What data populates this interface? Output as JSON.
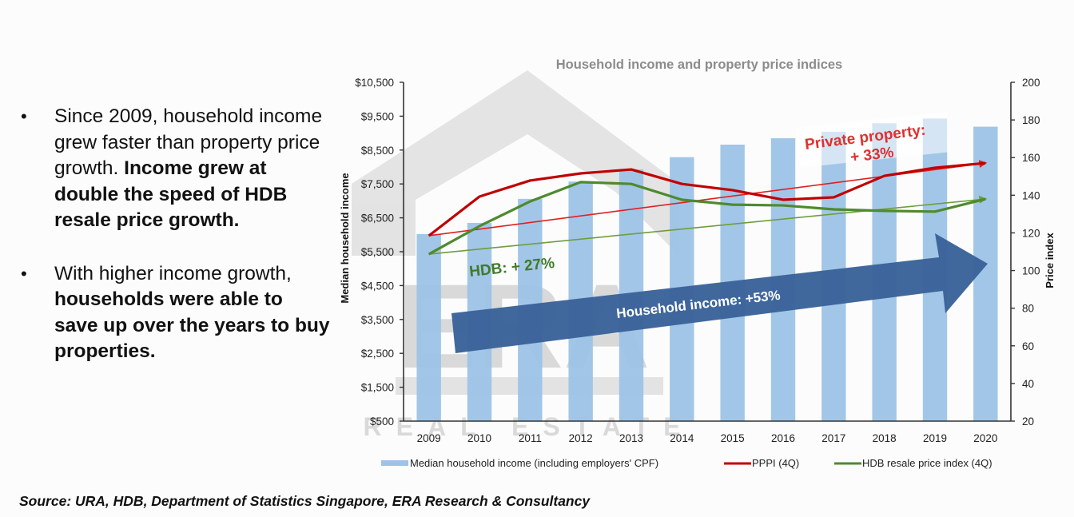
{
  "bullets": [
    {
      "segments": [
        {
          "text": "Since 2009, household income grew faster than property price growth. ",
          "bold": false
        },
        {
          "text": "Income grew at double the speed of HDB resale price growth.",
          "bold": true
        }
      ]
    },
    {
      "segments": [
        {
          "text": "With higher income growth, ",
          "bold": false
        },
        {
          "text": "households were able to save up over the years to buy properties.",
          "bold": true
        }
      ]
    }
  ],
  "bullet_glyph": "•",
  "source": "Source: URA, HDB, Department of Statistics Singapore, ERA Research & Consultancy",
  "watermark": {
    "logo": "ERA",
    "tagline": "REAL ESTATE"
  },
  "colors": {
    "bars": "#9dc3e6",
    "ppi": "#c00000",
    "hdb": "#4e8a2e",
    "income_arrow": "#3b6399",
    "title": "#8c8c8c"
  },
  "chart_data": {
    "type": "bar+line",
    "title": "Household income and property price indices",
    "categories": [
      "2009",
      "2010",
      "2011",
      "2012",
      "2013",
      "2014",
      "2015",
      "2016",
      "2017",
      "2018",
      "2019",
      "2020"
    ],
    "ylabel_left": "Median household income",
    "ylabel_right": "Price index",
    "ylim_left": [
      500,
      10500
    ],
    "ylim_right": [
      20,
      200
    ],
    "yticks_left": [
      "$10,500",
      "$9,500",
      "$8,500",
      "$7,500",
      "$6,500",
      "$5,500",
      "$4,500",
      "$3,500",
      "$2,500",
      "$1,500",
      "$500"
    ],
    "yticks_left_values": [
      10500,
      9500,
      8500,
      7500,
      6500,
      5500,
      4500,
      3500,
      2500,
      1500,
      500
    ],
    "yticks_right": [
      200,
      180,
      160,
      140,
      120,
      100,
      80,
      60,
      40,
      20
    ],
    "grid": false,
    "legend_position": "bottom",
    "series": [
      {
        "name": "Median household income (including employers' CPF)",
        "type": "bar",
        "axis": "left",
        "values": [
          6020,
          6350,
          7060,
          7570,
          7930,
          8290,
          8660,
          8850,
          9040,
          9290,
          9430,
          9190
        ]
      },
      {
        "name": "PPPI (4Q)",
        "type": "line",
        "axis": "right",
        "values": [
          118.5,
          139.3,
          147.8,
          151.6,
          153.7,
          146.0,
          142.7,
          137.6,
          138.9,
          150.3,
          154.6,
          157.1
        ]
      },
      {
        "name": "HDB resale price index (4Q)",
        "type": "line",
        "axis": "right",
        "values": [
          108.7,
          123.6,
          136.7,
          147.0,
          146.0,
          137.6,
          135.0,
          134.6,
          132.5,
          131.7,
          131.3,
          138.0
        ]
      }
    ],
    "annotations": [
      {
        "text_line1": "Private property:",
        "text_line2": "+ 33%",
        "trend": {
          "series": "PPPI (4Q)",
          "from": 118.5,
          "to": 157.1
        }
      },
      {
        "text": "HDB: + 27%",
        "trend": {
          "series": "HDB resale price index (4Q)",
          "from": 108.7,
          "to": 138.0
        }
      },
      {
        "text": "Household income: +53%"
      }
    ]
  }
}
